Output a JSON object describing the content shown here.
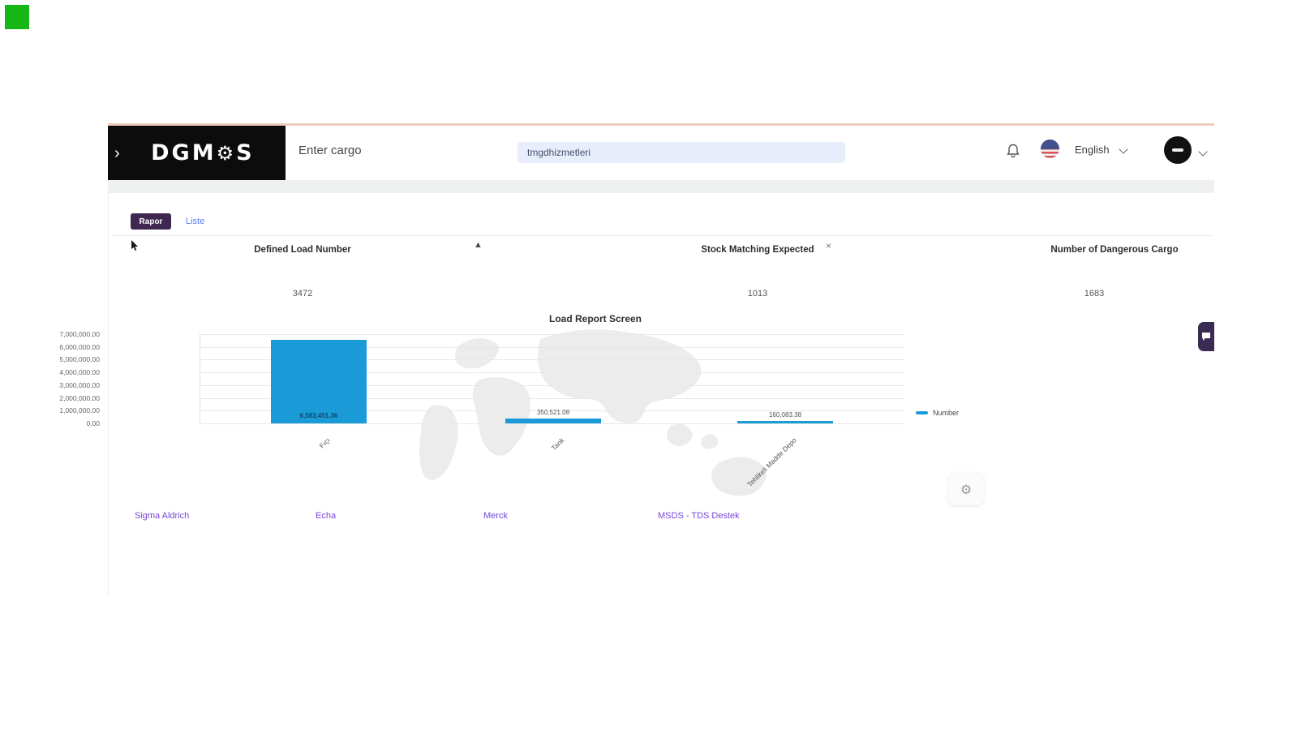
{
  "page": {
    "recording_indicator_color": "#17b617"
  },
  "header": {
    "logo_left": "DGM",
    "logo_gear": "⚙",
    "logo_right": "S",
    "collapse_chevron": "›",
    "search_label": "Enter cargo",
    "search_value": "tmgdhizmetleri",
    "language": "English",
    "accent_border_color": "#f0cabb"
  },
  "tabs": {
    "report": "Rapor",
    "list": "Liste"
  },
  "icons": {
    "warning": "▲",
    "close": "×",
    "gear": "⚙"
  },
  "cards": [
    {
      "title": "Defined Load Number",
      "value": "3472"
    },
    {
      "title": "Stock Matching Expected",
      "value": "1013"
    },
    {
      "title": "Number of Dangerous Cargo",
      "value": "1683"
    }
  ],
  "chart_data": {
    "type": "bar",
    "title": "Load Report Screen",
    "categories": [
      "Fıçı",
      "Tank",
      "Tehlikeli Madde Depo"
    ],
    "series": [
      {
        "name": "Number",
        "values": [
          6583451.36,
          350521.08,
          160083.38
        ]
      }
    ],
    "value_labels": [
      "6,583,451.36",
      "350,521.08",
      "160,083.38"
    ],
    "xlabel": "",
    "ylabel": "",
    "ylim": [
      0,
      7000000
    ],
    "ytick_labels": [
      "7,000,000.00",
      "6,000,000.00",
      "5,000,000.00",
      "4,000,000.00",
      "3,000,000.00",
      "2,000,000.00",
      "1,000,000.00",
      "0.00"
    ],
    "grid": true,
    "legend_position": "right",
    "bar_color": "#1a9bd7"
  },
  "links": [
    {
      "label": "Sigma Aldrich"
    },
    {
      "label": "Echa"
    },
    {
      "label": "Merck"
    },
    {
      "label": "MSDS - TDS Destek"
    }
  ]
}
